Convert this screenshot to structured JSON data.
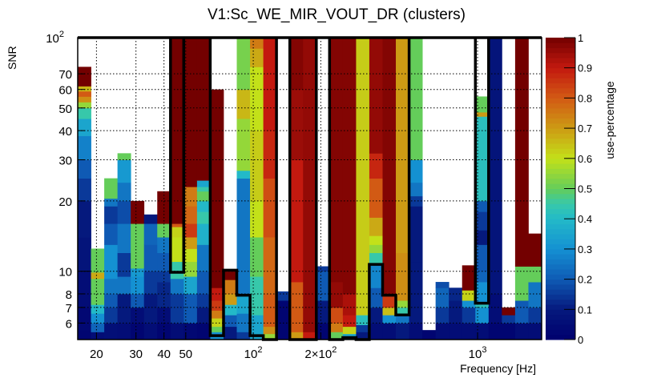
{
  "chart_data": {
    "type": "heatmap",
    "title": "V1:Sc_WE_MIR_VOUT_DR (clusters)",
    "xlabel": "Frequency [Hz]",
    "ylabel": "SNR",
    "zlabel": "use-percentage",
    "x_scale": "log",
    "y_scale": "log",
    "xlim": [
      16.5,
      1930
    ],
    "ylim": [
      5.1,
      100
    ],
    "zlim": [
      0,
      1
    ],
    "grid": true,
    "x_ticks": [
      {
        "value": 20,
        "label": "20"
      },
      {
        "value": 30,
        "label": "30"
      },
      {
        "value": 40,
        "label": "40"
      },
      {
        "value": 50,
        "label": "50"
      },
      {
        "value": 100,
        "label": "10",
        "sup": "2"
      },
      {
        "value": 200,
        "label": "2×10",
        "sup": "2"
      },
      {
        "value": 1000,
        "label": "10",
        "sup": "3"
      }
    ],
    "y_ticks": [
      {
        "value": 6,
        "label": "6"
      },
      {
        "value": 7,
        "label": "7"
      },
      {
        "value": 8,
        "label": "8"
      },
      {
        "value": 10,
        "label": "10"
      },
      {
        "value": 20,
        "label": "20"
      },
      {
        "value": 30,
        "label": "30"
      },
      {
        "value": 40,
        "label": "40"
      },
      {
        "value": 50,
        "label": "50"
      },
      {
        "value": 60,
        "label": "60"
      },
      {
        "value": 70,
        "label": "70"
      },
      {
        "value": 100,
        "label": "10",
        "sup": "2"
      }
    ],
    "z_ticks": [
      {
        "value": 0,
        "label": "0"
      },
      {
        "value": 0.1,
        "label": "0.1"
      },
      {
        "value": 0.2,
        "label": "0.2"
      },
      {
        "value": 0.3,
        "label": "0.3"
      },
      {
        "value": 0.4,
        "label": "0.4"
      },
      {
        "value": 0.5,
        "label": "0.5"
      },
      {
        "value": 0.6,
        "label": "0.6"
      },
      {
        "value": 0.7,
        "label": "0.7"
      },
      {
        "value": 0.8,
        "label": "0.8"
      },
      {
        "value": 0.9,
        "label": "0.9"
      },
      {
        "value": 1,
        "label": "1"
      }
    ],
    "columns_note": "35 log-spaced frequency bins; each column lists [snr_low, snr_high, use_percentage] cells",
    "columns": [
      [
        [
          5.1,
          5.6,
          0.02
        ],
        [
          5.6,
          7,
          0.03
        ],
        [
          7,
          10,
          0.05
        ],
        [
          10,
          14,
          0.08
        ],
        [
          14,
          20,
          0.1
        ],
        [
          20,
          25,
          0.15
        ],
        [
          25,
          30,
          0.2
        ],
        [
          30,
          38,
          0.27
        ],
        [
          38,
          45,
          0.35
        ],
        [
          45,
          50,
          0.45
        ],
        [
          50,
          53,
          0.55
        ],
        [
          53,
          56,
          0.72
        ],
        [
          56,
          59,
          0.8
        ],
        [
          59,
          62,
          0.66
        ],
        [
          62,
          75,
          1.0
        ]
      ],
      [
        [
          5.1,
          5.5,
          0.05
        ],
        [
          5.5,
          6,
          0.22
        ],
        [
          6,
          6.6,
          0.3
        ],
        [
          6.6,
          7.2,
          0.4
        ],
        [
          7.2,
          9.3,
          0.5
        ],
        [
          9.3,
          9.9,
          0.68
        ],
        [
          9.9,
          12.5,
          0.5
        ]
      ],
      [
        [
          5.1,
          6,
          0.06
        ],
        [
          6,
          7,
          0.15
        ],
        [
          7,
          8,
          0.2
        ],
        [
          8,
          9.3,
          0.25
        ],
        [
          9.3,
          11,
          0.3
        ],
        [
          11,
          13,
          0.3
        ],
        [
          13,
          16,
          0.2
        ],
        [
          16,
          19,
          0.15
        ],
        [
          19,
          20.5,
          0.25
        ],
        [
          20.5,
          25,
          0.5
        ]
      ],
      [
        [
          5.1,
          6,
          0.05
        ],
        [
          6,
          8,
          0.1
        ],
        [
          8,
          9.5,
          0.25
        ],
        [
          9.5,
          12,
          0.15
        ],
        [
          12,
          16,
          0.25
        ],
        [
          16,
          20,
          0.18
        ],
        [
          20,
          24,
          0.25
        ],
        [
          24,
          30,
          0.32
        ],
        [
          30,
          32,
          0.5
        ]
      ],
      [
        [
          5.1,
          6,
          0.02
        ],
        [
          6,
          7,
          0.05
        ],
        [
          7,
          8,
          0.2
        ],
        [
          8,
          9.5,
          0.3
        ],
        [
          9.5,
          10.3,
          0.32
        ],
        [
          10.3,
          16,
          0.5
        ],
        [
          16,
          20,
          1.0
        ]
      ],
      [
        [
          5.1,
          6,
          0.05
        ],
        [
          6,
          8,
          0.1
        ],
        [
          8,
          10,
          0.15
        ],
        [
          10,
          13,
          0.2
        ],
        [
          13,
          16,
          0.22
        ],
        [
          16,
          17.5,
          0.1
        ]
      ],
      [
        [
          5.1,
          6,
          0.02
        ],
        [
          6,
          7,
          0.05
        ],
        [
          7,
          9,
          0.12
        ],
        [
          9,
          10,
          0.15
        ],
        [
          10,
          12,
          0.2
        ],
        [
          12,
          14,
          0.25
        ],
        [
          14,
          16,
          0.5
        ],
        [
          16,
          22,
          1.0
        ]
      ],
      [
        [
          5.1,
          6,
          0.05
        ],
        [
          6,
          8,
          0.15
        ],
        [
          8,
          9.3,
          0.25
        ],
        [
          9.3,
          11,
          0.45
        ],
        [
          11,
          14,
          0.6
        ],
        [
          14,
          15.5,
          0.62
        ],
        [
          15.5,
          16,
          0.8
        ],
        [
          16,
          100,
          1.0
        ]
      ],
      [
        [
          5.1,
          6,
          0.03
        ],
        [
          6,
          8,
          0.2
        ],
        [
          8,
          9.5,
          0.35
        ],
        [
          9.5,
          11,
          0.55
        ],
        [
          11,
          12.5,
          0.6
        ],
        [
          12.5,
          14,
          0.7
        ],
        [
          14,
          16,
          0.85
        ],
        [
          16,
          19,
          0.78
        ],
        [
          19,
          20,
          0.75
        ],
        [
          20,
          23,
          0.75
        ],
        [
          23,
          100,
          1.0
        ]
      ],
      [
        [
          5.1,
          6,
          0.02
        ],
        [
          6,
          7,
          0.1
        ],
        [
          7,
          8,
          0.15
        ],
        [
          8,
          10,
          0.2
        ],
        [
          10,
          13,
          0.25
        ],
        [
          13,
          16,
          0.38
        ],
        [
          16,
          18,
          0.45
        ],
        [
          18,
          20,
          0.4
        ],
        [
          20,
          22,
          0.5
        ],
        [
          22,
          23,
          0.45
        ],
        [
          23,
          24.5,
          0.35
        ],
        [
          24.5,
          100,
          1.0
        ]
      ],
      [
        [
          5.1,
          5.5,
          0.3
        ],
        [
          5.5,
          5.8,
          0.5
        ],
        [
          5.8,
          6.3,
          0.62
        ],
        [
          6.3,
          6.8,
          0.75
        ],
        [
          6.8,
          7.5,
          0.85
        ],
        [
          7.5,
          8.5,
          0.9
        ],
        [
          8.5,
          60,
          1.0
        ]
      ],
      [
        [
          5.1,
          5.8,
          0.1
        ],
        [
          5.8,
          6.5,
          0.2
        ],
        [
          6.5,
          7.2,
          0.4
        ],
        [
          7.2,
          8,
          0.7
        ],
        [
          8,
          9.2,
          0.75
        ],
        [
          9.2,
          10.1,
          1.0
        ]
      ],
      [
        [
          5.1,
          5.5,
          0.15
        ],
        [
          5.5,
          6.6,
          0.25
        ],
        [
          6.6,
          7.9,
          0.35
        ],
        [
          7.9,
          25,
          0.25
        ],
        [
          25,
          27,
          0.4
        ],
        [
          27,
          45,
          0.55
        ],
        [
          45,
          60,
          0.66
        ],
        [
          60,
          100,
          0.52
        ]
      ],
      [
        [
          5.1,
          6.5,
          0.35
        ],
        [
          6.5,
          8,
          0.45
        ],
        [
          8,
          9.5,
          0.45
        ],
        [
          9.5,
          14,
          0.5
        ],
        [
          14,
          20,
          0.6
        ],
        [
          20,
          40,
          0.63
        ],
        [
          40,
          75,
          0.6
        ],
        [
          75,
          90,
          0.68
        ],
        [
          90,
          100,
          0.75
        ]
      ],
      [
        [
          5.1,
          5.4,
          0.55
        ],
        [
          5.4,
          5.8,
          0.72
        ],
        [
          5.8,
          8,
          0.8
        ],
        [
          8,
          14,
          0.78
        ],
        [
          14,
          25,
          0.82
        ],
        [
          25,
          40,
          0.88
        ],
        [
          40,
          100,
          0.9
        ]
      ],
      [
        [
          5.1,
          7.5,
          0.02
        ],
        [
          7.5,
          8.2,
          0.15
        ]
      ],
      [
        [
          5.1,
          5.5,
          0.7
        ],
        [
          5.5,
          9,
          0.8
        ],
        [
          9,
          30,
          0.9
        ],
        [
          30,
          60,
          0.95
        ],
        [
          60,
          100,
          0.98
        ]
      ],
      [
        [
          5.1,
          5.5,
          0.9
        ],
        [
          5.5,
          100,
          0.96
        ]
      ],
      [
        [
          5.1,
          6,
          0.02
        ],
        [
          6,
          7.5,
          0.1
        ],
        [
          7.5,
          10,
          0.2
        ],
        [
          10,
          10.5,
          0.15
        ]
      ],
      [
        [
          5.1,
          5.5,
          0.5
        ],
        [
          5.5,
          6,
          0.75
        ],
        [
          6,
          7,
          0.82
        ],
        [
          7,
          9,
          0.96
        ],
        [
          9,
          100,
          0.98
        ]
      ],
      [
        [
          5.1,
          5.4,
          0.35
        ],
        [
          5.4,
          5.8,
          0.62
        ],
        [
          5.8,
          6.5,
          0.9
        ],
        [
          6.5,
          8,
          0.93
        ],
        [
          8,
          100,
          0.98
        ]
      ],
      [
        [
          5.1,
          5.5,
          0.1
        ],
        [
          5.5,
          5.9,
          0.15
        ],
        [
          5.9,
          6.5,
          0.42
        ],
        [
          6.5,
          100,
          0.63
        ]
      ],
      [
        [
          5.1,
          6,
          0.05
        ],
        [
          6,
          7,
          0.1
        ],
        [
          7,
          8.5,
          0.2
        ],
        [
          8.5,
          10.7,
          0.28
        ],
        [
          10.7,
          12,
          0.45
        ],
        [
          12,
          13,
          0.55
        ],
        [
          13,
          14.2,
          0.6
        ],
        [
          14.2,
          17,
          0.68
        ],
        [
          17,
          25,
          0.8
        ],
        [
          25,
          32,
          0.88
        ],
        [
          32,
          100,
          0.96
        ]
      ],
      [
        [
          5.1,
          6,
          0.05
        ],
        [
          6,
          6.5,
          0.3
        ],
        [
          6.5,
          7,
          0.65
        ],
        [
          7,
          8,
          0.85
        ],
        [
          8,
          100,
          0.98
        ]
      ],
      [
        [
          5.1,
          6,
          0.1
        ],
        [
          6,
          6.5,
          0.25
        ],
        [
          6.5,
          7,
          0.45
        ],
        [
          7,
          7.5,
          0.55
        ],
        [
          7.5,
          12,
          0.72
        ],
        [
          12,
          100,
          0.7
        ]
      ],
      [
        [
          5.1,
          6,
          0.05
        ],
        [
          6,
          11,
          0.1
        ],
        [
          11,
          19,
          0.1
        ],
        [
          19,
          21,
          0.15
        ],
        [
          21,
          24,
          0.25
        ],
        [
          24,
          30,
          0.3
        ],
        [
          30,
          100,
          0.5
        ]
      ],
      [
        [
          5.1,
          5.6,
          0.02
        ]
      ],
      [
        [
          5.1,
          6,
          0.05
        ],
        [
          6,
          7,
          0.15
        ],
        [
          7,
          8.5,
          0.22
        ],
        [
          8.5,
          9,
          0.18
        ]
      ],
      [
        [
          5.1,
          6,
          0.05
        ],
        [
          6,
          7.5,
          0.1
        ],
        [
          7.5,
          8.5,
          0.12
        ]
      ],
      [
        [
          5.1,
          6,
          0.05
        ],
        [
          6,
          7,
          0.15
        ],
        [
          7,
          7.5,
          0.3
        ],
        [
          7.5,
          8.3,
          0.62
        ],
        [
          8.3,
          10.6,
          1.0
        ]
      ],
      [
        [
          5.1,
          6,
          0.05
        ],
        [
          6,
          7,
          0.3
        ],
        [
          7,
          7.3,
          0.42
        ],
        [
          7.3,
          9,
          0.3
        ],
        [
          9,
          10,
          0.22
        ],
        [
          10,
          13,
          0.2
        ],
        [
          13,
          15,
          0.1
        ],
        [
          15,
          18,
          0.15
        ],
        [
          18,
          20,
          0.2
        ],
        [
          20,
          30,
          0.42
        ],
        [
          30,
          46,
          0.42
        ],
        [
          46,
          48,
          0.7
        ],
        [
          48,
          56,
          0.5
        ]
      ],
      [
        [
          5.1,
          6,
          0.02
        ],
        [
          6,
          8,
          0.05
        ],
        [
          8,
          100,
          0.08
        ]
      ],
      [
        [
          5.1,
          6,
          0.02
        ],
        [
          6,
          6.5,
          0.15
        ],
        [
          6.5,
          7,
          1.0
        ]
      ],
      [
        [
          5.1,
          6,
          0.05
        ],
        [
          6,
          7.5,
          0.2
        ],
        [
          7.5,
          10.5,
          0.5
        ],
        [
          10.5,
          100,
          1.0
        ]
      ],
      [
        [
          5.1,
          6,
          0.05
        ],
        [
          6,
          7,
          0.15
        ],
        [
          7,
          9,
          0.25
        ],
        [
          9,
          10.5,
          0.5
        ],
        [
          10.5,
          14.5,
          1.0
        ]
      ]
    ],
    "outline_floor_snr": [
      100,
      100,
      100,
      100,
      100,
      100,
      100,
      9.9,
      100,
      100,
      5.3,
      10.1,
      7.9,
      5.3,
      5.1,
      100,
      5.1,
      5.1,
      100,
      5.1,
      5.2,
      5.1,
      10.7,
      7.9,
      6.5,
      100,
      100,
      100,
      100,
      100,
      7.3,
      100,
      100,
      100,
      100
    ]
  }
}
